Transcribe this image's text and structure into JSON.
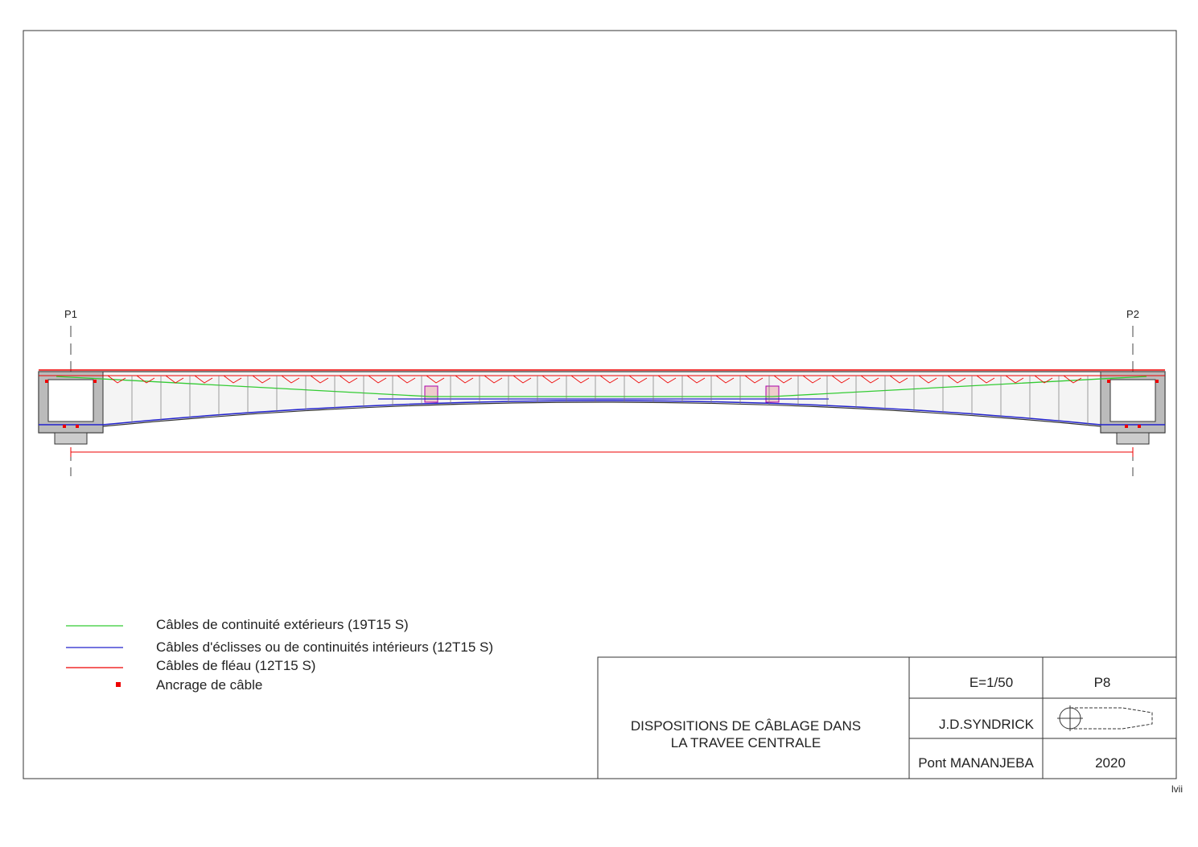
{
  "piers": [
    "P1",
    "P2"
  ],
  "legend": [
    "Câbles de continuité extérieurs (19T15 S)",
    "Câbles d'éclisses ou de continuités intérieurs (12T15 S)",
    "Câbles de fléau (12T15 S)",
    "Ancrage de câble"
  ],
  "title_block": {
    "title_lines": [
      "DISPOSITIONS DE CÂBLAGE DANS",
      "LA TRAVEE CENTRALE"
    ],
    "scale": "E=1/50",
    "sheet": "P8",
    "author": "J.D.SYNDRICK",
    "project": "Pont MANANJEBA",
    "year": "2020"
  },
  "page_number": "lvii"
}
